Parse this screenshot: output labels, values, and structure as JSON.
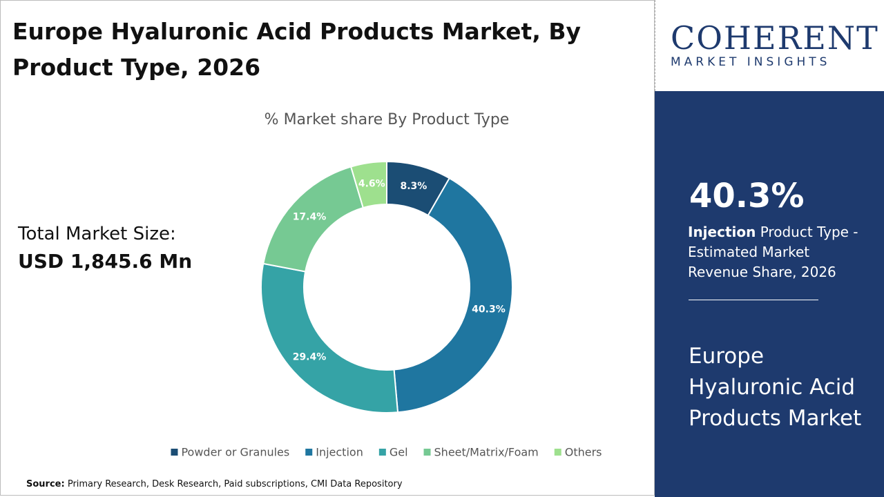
{
  "header": {
    "title": "Europe Hyaluronic Acid Products Market, By Product Type, 2026"
  },
  "market_size": {
    "label": "Total Market Size:",
    "value": "USD 1,845.6 Mn"
  },
  "logo": {
    "name": "COHERENT",
    "tagline": "MARKET INSIGHTS"
  },
  "side_panel": {
    "highlight": "40.3%",
    "segment": "Injection",
    "description": "Product Type - Estimated Market Revenue Share, 2026",
    "market": "Europe Hyaluronic Acid Products Market"
  },
  "source": {
    "label": "Source:",
    "text": "Primary Research, Desk Research, Paid subscriptions, CMI Data Repository"
  },
  "chart_data": {
    "type": "doughnut",
    "title": "% Market share By Product Type",
    "categories": [
      "Powder or Granules",
      "Injection",
      "Gel",
      "Sheet/Matrix/Foam",
      "Others"
    ],
    "values": [
      8.3,
      40.3,
      29.4,
      17.4,
      4.6
    ],
    "value_labels": [
      "8.3%",
      "40.3%",
      "29.4%",
      "17.4%",
      "4.6%"
    ],
    "colors": [
      "#1b4d74",
      "#1f76a0",
      "#35a3a6",
      "#76c993",
      "#9ee08e"
    ],
    "legend": "bottom"
  }
}
